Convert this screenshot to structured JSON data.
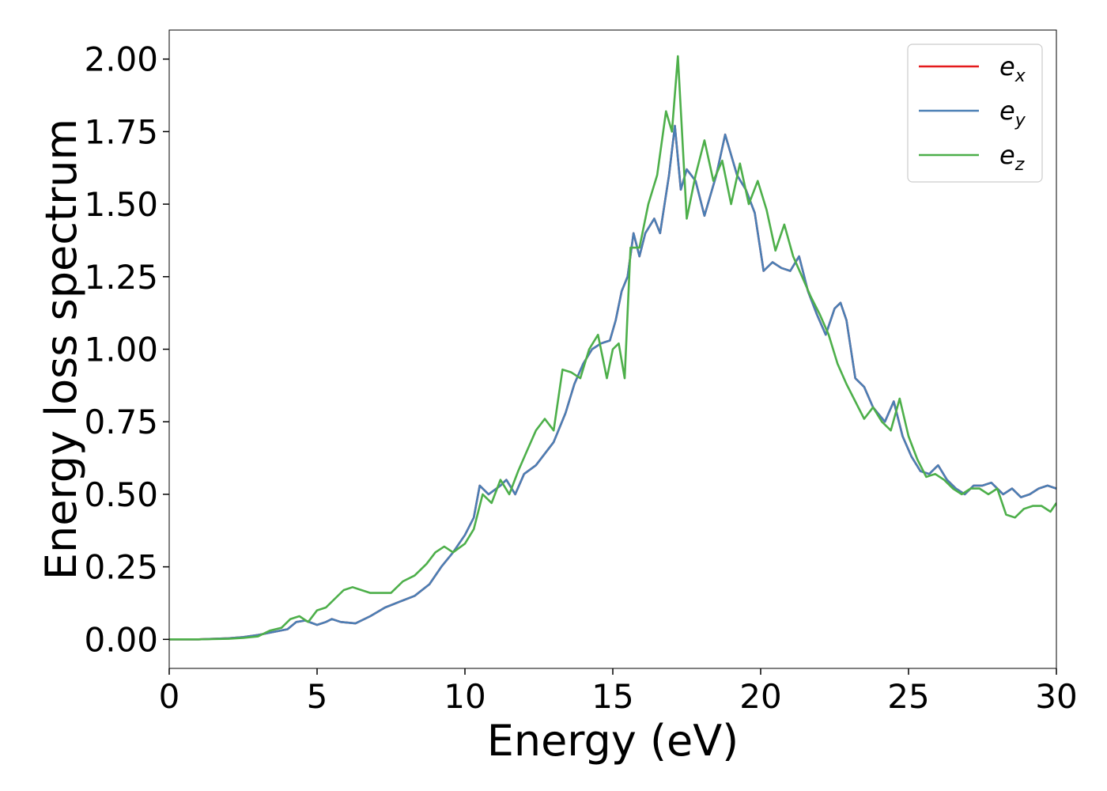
{
  "chart_data": {
    "type": "line",
    "xlabel": "Energy (eV)",
    "ylabel": "Energy loss spectrum",
    "xlim": [
      0,
      30
    ],
    "ylim": [
      -0.1,
      2.1
    ],
    "xticks": [
      "0",
      "5",
      "10",
      "15",
      "20",
      "25",
      "30"
    ],
    "yticks": [
      "0.00",
      "0.25",
      "0.50",
      "0.75",
      "1.00",
      "1.25",
      "1.50",
      "1.75",
      "2.00"
    ],
    "grid": false,
    "legend_position": "top-right",
    "series": [
      {
        "name": "e_x",
        "legend_base": "e",
        "legend_sub": "x",
        "color": "#e41a1c",
        "x": [
          0,
          1,
          2,
          2.5,
          3,
          3.5,
          4,
          4.3,
          4.6,
          5,
          5.3,
          5.5,
          5.8,
          6.3,
          6.8,
          7.3,
          7.8,
          8.3,
          8.8,
          9.2,
          9.6,
          10,
          10.3,
          10.5,
          10.8,
          11.2,
          11.4,
          11.7,
          12,
          12.4,
          12.7,
          13,
          13.4,
          13.7,
          14,
          14.3,
          14.6,
          14.9,
          15.1,
          15.3,
          15.5,
          15.7,
          15.9,
          16.1,
          16.4,
          16.6,
          16.9,
          17.1,
          17.3,
          17.5,
          17.8,
          18.1,
          18.5,
          18.8,
          19.2,
          19.5,
          19.8,
          20.1,
          20.4,
          20.7,
          21,
          21.3,
          21.6,
          21.9,
          22.2,
          22.5,
          22.7,
          22.9,
          23.2,
          23.5,
          23.8,
          24.2,
          24.5,
          24.8,
          25.1,
          25.4,
          25.7,
          26,
          26.3,
          26.6,
          26.9,
          27.2,
          27.5,
          27.8,
          28.2,
          28.5,
          28.8,
          29.1,
          29.4,
          29.7,
          30
        ],
        "y": [
          0,
          0,
          0.004,
          0.008,
          0.015,
          0.025,
          0.035,
          0.06,
          0.065,
          0.05,
          0.06,
          0.07,
          0.06,
          0.055,
          0.08,
          0.11,
          0.13,
          0.15,
          0.19,
          0.25,
          0.3,
          0.36,
          0.42,
          0.53,
          0.5,
          0.53,
          0.55,
          0.5,
          0.57,
          0.6,
          0.64,
          0.68,
          0.78,
          0.88,
          0.95,
          1.0,
          1.02,
          1.03,
          1.1,
          1.2,
          1.25,
          1.4,
          1.32,
          1.4,
          1.45,
          1.4,
          1.6,
          1.77,
          1.55,
          1.62,
          1.58,
          1.46,
          1.6,
          1.74,
          1.6,
          1.55,
          1.47,
          1.27,
          1.3,
          1.28,
          1.27,
          1.32,
          1.2,
          1.12,
          1.05,
          1.14,
          1.16,
          1.1,
          0.9,
          0.87,
          0.8,
          0.75,
          0.82,
          0.7,
          0.63,
          0.58,
          0.57,
          0.6,
          0.55,
          0.52,
          0.5,
          0.53,
          0.53,
          0.54,
          0.5,
          0.52,
          0.49,
          0.5,
          0.52,
          0.53,
          0.52
        ]
      },
      {
        "name": "e_y",
        "legend_base": "e",
        "legend_sub": "y",
        "color": "#4a7fb5",
        "x": [
          0,
          1,
          2,
          2.5,
          3,
          3.5,
          4,
          4.3,
          4.6,
          5,
          5.3,
          5.5,
          5.8,
          6.3,
          6.8,
          7.3,
          7.8,
          8.3,
          8.8,
          9.2,
          9.6,
          10,
          10.3,
          10.5,
          10.8,
          11.2,
          11.4,
          11.7,
          12,
          12.4,
          12.7,
          13,
          13.4,
          13.7,
          14,
          14.3,
          14.6,
          14.9,
          15.1,
          15.3,
          15.5,
          15.7,
          15.9,
          16.1,
          16.4,
          16.6,
          16.9,
          17.1,
          17.3,
          17.5,
          17.8,
          18.1,
          18.5,
          18.8,
          19.2,
          19.5,
          19.8,
          20.1,
          20.4,
          20.7,
          21,
          21.3,
          21.6,
          21.9,
          22.2,
          22.5,
          22.7,
          22.9,
          23.2,
          23.5,
          23.8,
          24.2,
          24.5,
          24.8,
          25.1,
          25.4,
          25.7,
          26,
          26.3,
          26.6,
          26.9,
          27.2,
          27.5,
          27.8,
          28.2,
          28.5,
          28.8,
          29.1,
          29.4,
          29.7,
          30
        ],
        "y": [
          0,
          0,
          0.004,
          0.008,
          0.015,
          0.025,
          0.035,
          0.06,
          0.065,
          0.05,
          0.06,
          0.07,
          0.06,
          0.055,
          0.08,
          0.11,
          0.13,
          0.15,
          0.19,
          0.25,
          0.3,
          0.36,
          0.42,
          0.53,
          0.5,
          0.53,
          0.55,
          0.5,
          0.57,
          0.6,
          0.64,
          0.68,
          0.78,
          0.88,
          0.95,
          1.0,
          1.02,
          1.03,
          1.1,
          1.2,
          1.25,
          1.4,
          1.32,
          1.4,
          1.45,
          1.4,
          1.6,
          1.77,
          1.55,
          1.62,
          1.58,
          1.46,
          1.6,
          1.74,
          1.6,
          1.55,
          1.47,
          1.27,
          1.3,
          1.28,
          1.27,
          1.32,
          1.2,
          1.12,
          1.05,
          1.14,
          1.16,
          1.1,
          0.9,
          0.87,
          0.8,
          0.75,
          0.82,
          0.7,
          0.63,
          0.58,
          0.57,
          0.6,
          0.55,
          0.52,
          0.5,
          0.53,
          0.53,
          0.54,
          0.5,
          0.52,
          0.49,
          0.5,
          0.52,
          0.53,
          0.52
        ]
      },
      {
        "name": "e_z",
        "legend_base": "e",
        "legend_sub": "z",
        "color": "#4daf4a",
        "x": [
          0,
          1,
          2,
          2.5,
          3,
          3.4,
          3.8,
          4.1,
          4.4,
          4.7,
          5,
          5.3,
          5.6,
          5.9,
          6.2,
          6.5,
          6.8,
          7.1,
          7.5,
          7.9,
          8.3,
          8.7,
          9,
          9.3,
          9.6,
          10,
          10.3,
          10.6,
          10.9,
          11.2,
          11.5,
          11.8,
          12.1,
          12.4,
          12.7,
          13,
          13.3,
          13.6,
          13.9,
          14.2,
          14.5,
          14.8,
          15,
          15.2,
          15.4,
          15.6,
          15.9,
          16.2,
          16.5,
          16.8,
          17,
          17.2,
          17.5,
          17.8,
          18.1,
          18.4,
          18.7,
          19,
          19.3,
          19.6,
          19.9,
          20.2,
          20.5,
          20.8,
          21.1,
          21.4,
          21.7,
          22,
          22.3,
          22.6,
          22.9,
          23.2,
          23.5,
          23.8,
          24.1,
          24.4,
          24.7,
          25,
          25.3,
          25.6,
          25.9,
          26.2,
          26.5,
          26.8,
          27.1,
          27.4,
          27.7,
          28,
          28.3,
          28.6,
          28.9,
          29.2,
          29.5,
          29.8,
          30
        ],
        "y": [
          0,
          0,
          0.002,
          0.005,
          0.01,
          0.03,
          0.04,
          0.07,
          0.08,
          0.06,
          0.1,
          0.11,
          0.14,
          0.17,
          0.18,
          0.17,
          0.16,
          0.16,
          0.16,
          0.2,
          0.22,
          0.26,
          0.3,
          0.32,
          0.3,
          0.33,
          0.38,
          0.5,
          0.47,
          0.55,
          0.5,
          0.58,
          0.65,
          0.72,
          0.76,
          0.72,
          0.93,
          0.92,
          0.9,
          1.0,
          1.05,
          0.9,
          1.0,
          1.02,
          0.9,
          1.35,
          1.35,
          1.5,
          1.6,
          1.82,
          1.75,
          2.01,
          1.45,
          1.6,
          1.72,
          1.58,
          1.65,
          1.5,
          1.64,
          1.5,
          1.58,
          1.48,
          1.34,
          1.43,
          1.32,
          1.25,
          1.18,
          1.12,
          1.05,
          0.95,
          0.88,
          0.82,
          0.76,
          0.8,
          0.75,
          0.72,
          0.83,
          0.7,
          0.62,
          0.56,
          0.57,
          0.55,
          0.52,
          0.5,
          0.52,
          0.52,
          0.5,
          0.52,
          0.43,
          0.42,
          0.45,
          0.46,
          0.46,
          0.44,
          0.47
        ]
      }
    ]
  }
}
